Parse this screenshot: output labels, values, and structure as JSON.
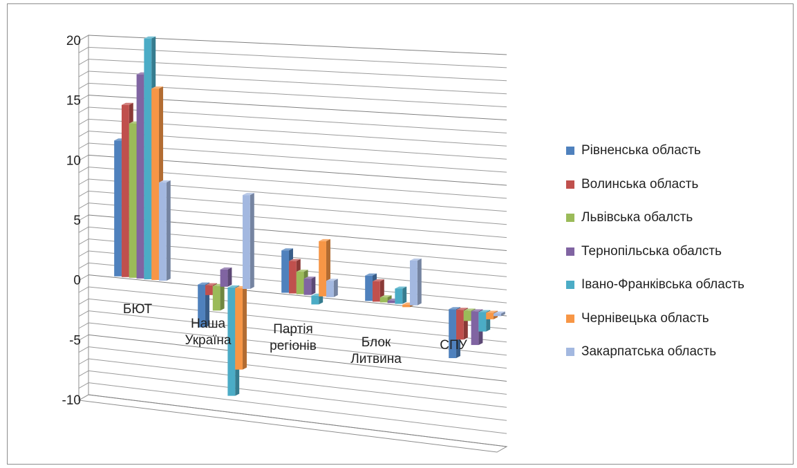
{
  "chart_data": {
    "type": "bar",
    "three_d": true,
    "categories": [
      "БЮТ",
      "Наша Україна",
      "Партія регіонів",
      "Блок Литвина",
      "СПУ"
    ],
    "category_label_lines": [
      [
        "БЮТ"
      ],
      [
        "Наша",
        "Україна"
      ],
      [
        "Партія",
        "регіонів"
      ],
      [
        "Блок",
        "Литвина"
      ],
      [
        "СПУ"
      ]
    ],
    "series": [
      {
        "name": "Рівненська область",
        "color": "#4f81bd",
        "values": [
          11.3,
          -3.5,
          3.4,
          2.0,
          -3.8
        ]
      },
      {
        "name": "Волинська область",
        "color": "#c0504d",
        "values": [
          14.3,
          -0.8,
          2.6,
          1.6,
          -2.3
        ]
      },
      {
        "name": "Львівська обалсть",
        "color": "#9bbb59",
        "values": [
          12.8,
          -2.0,
          1.8,
          0.4,
          -0.8
        ]
      },
      {
        "name": "Тернопільська обалсть",
        "color": "#8064a2",
        "values": [
          16.9,
          1.4,
          1.3,
          0.2,
          -2.6
        ]
      },
      {
        "name": "Івано-Франківська область",
        "color": "#4bacc6",
        "values": [
          19.9,
          -8.8,
          -0.7,
          1.2,
          -1.5
        ]
      },
      {
        "name": "Чернівецька область",
        "color": "#f79646",
        "values": [
          15.8,
          -6.6,
          4.4,
          -0.2,
          -0.5
        ]
      },
      {
        "name": "Закарпатська область",
        "color": "#a3b8e0",
        "values": [
          8.1,
          7.6,
          1.3,
          3.5,
          -0.2
        ]
      }
    ],
    "y_ticks": [
      "20",
      "15",
      "10",
      "5",
      "0",
      "-5",
      "-10"
    ],
    "ylim": [
      -10,
      20
    ],
    "grid": true,
    "legend_position": "right"
  }
}
